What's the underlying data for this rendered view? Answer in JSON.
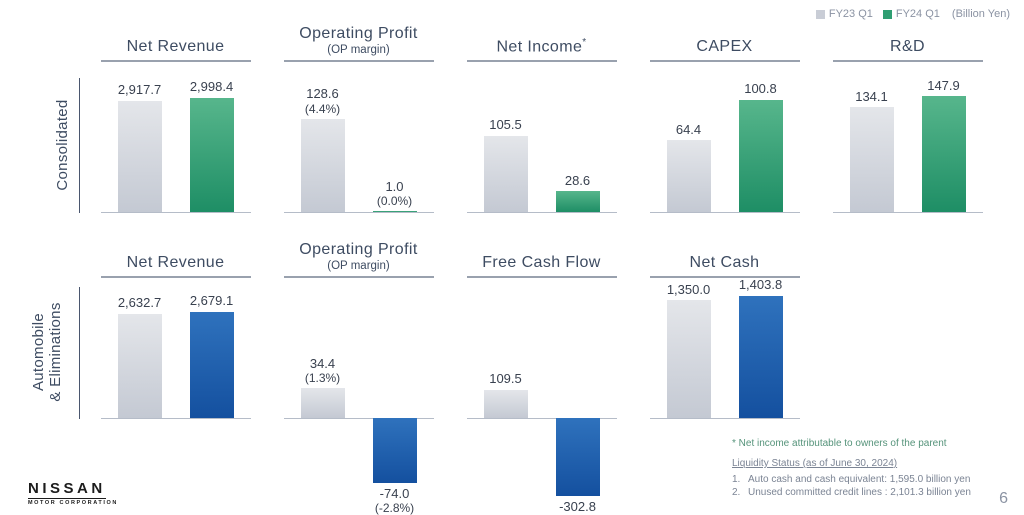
{
  "legend": {
    "items": [
      {
        "label": "FY23 Q1",
        "color": "#c9cdd6"
      },
      {
        "label": "FY24 Q1",
        "color": "#2f9e72"
      }
    ],
    "unit": "(Billion Yen)"
  },
  "row_labels": [
    {
      "lines": [
        "Consolidated"
      ]
    },
    {
      "lines": [
        "Automobile",
        "& Eliminations"
      ]
    }
  ],
  "chart_data": [
    {
      "type": "bar",
      "row": "Consolidated",
      "title": "Net Revenue",
      "subtitle": "",
      "title_suffix": "",
      "categories": [
        "FY23 Q1",
        "FY24 Q1"
      ],
      "values": [
        2917.7,
        2998.4
      ],
      "value_labels": [
        "2,917.7",
        "2,998.4"
      ],
      "pct_labels": [
        "",
        ""
      ],
      "ylim": [
        0,
        3800
      ]
    },
    {
      "type": "bar",
      "row": "Consolidated",
      "title": "Operating Profit",
      "subtitle": "(OP margin)",
      "title_suffix": "",
      "categories": [
        "FY23 Q1",
        "FY24 Q1"
      ],
      "values": [
        128.6,
        1.0
      ],
      "value_labels": [
        "128.6",
        "1.0"
      ],
      "pct_labels": [
        "(4.4%)",
        "(0.0%)"
      ],
      "ylim": [
        0,
        200
      ]
    },
    {
      "type": "bar",
      "row": "Consolidated",
      "title": "Net Income",
      "subtitle": "",
      "title_suffix": "*",
      "categories": [
        "FY23 Q1",
        "FY24 Q1"
      ],
      "values": [
        105.5,
        28.6
      ],
      "value_labels": [
        "105.5",
        "28.6"
      ],
      "pct_labels": [
        "",
        ""
      ],
      "ylim": [
        0,
        200
      ]
    },
    {
      "type": "bar",
      "row": "Consolidated",
      "title": "CAPEX",
      "subtitle": "",
      "title_suffix": "",
      "categories": [
        "FY23 Q1",
        "FY24 Q1"
      ],
      "values": [
        64.4,
        100.8
      ],
      "value_labels": [
        "64.4",
        "100.8"
      ],
      "pct_labels": [
        "",
        ""
      ],
      "ylim": [
        0,
        130
      ]
    },
    {
      "type": "bar",
      "row": "Consolidated",
      "title": "R&D",
      "subtitle": "",
      "title_suffix": "",
      "categories": [
        "FY23 Q1",
        "FY24 Q1"
      ],
      "values": [
        134.1,
        147.9
      ],
      "value_labels": [
        "134.1",
        "147.9"
      ],
      "pct_labels": [
        "",
        ""
      ],
      "ylim": [
        0,
        185
      ]
    },
    {
      "type": "bar",
      "row": "Automobile & Eliminations",
      "title": "Net Revenue",
      "subtitle": "",
      "title_suffix": "",
      "categories": [
        "FY23 Q1",
        "FY24 Q1"
      ],
      "values": [
        2632.7,
        2679.1
      ],
      "value_labels": [
        "2,632.7",
        "2,679.1"
      ],
      "pct_labels": [
        "",
        ""
      ],
      "ylim": [
        0,
        3400
      ]
    },
    {
      "type": "bar",
      "row": "Automobile & Eliminations",
      "title": "Operating Profit",
      "subtitle": "(OP margin)",
      "title_suffix": "",
      "categories": [
        "FY23 Q1",
        "FY24 Q1"
      ],
      "values": [
        34.4,
        -74.0
      ],
      "value_labels": [
        "34.4",
        "-74.0"
      ],
      "pct_labels": [
        "(1.3%)",
        "(-2.8%)"
      ],
      "ylim": [
        -90,
        155
      ]
    },
    {
      "type": "bar",
      "row": "Automobile & Eliminations",
      "title": "Free Cash Flow",
      "subtitle": "",
      "title_suffix": "",
      "categories": [
        "FY23 Q1",
        "FY24 Q1"
      ],
      "values": [
        109.5,
        -302.8
      ],
      "value_labels": [
        "109.5",
        "-302.8"
      ],
      "pct_labels": [
        "",
        ""
      ],
      "ylim": [
        -350,
        524
      ]
    },
    {
      "type": "bar",
      "row": "Automobile & Eliminations",
      "title": "Net Cash",
      "subtitle": "",
      "title_suffix": "",
      "categories": [
        "FY23 Q1",
        "FY24 Q1"
      ],
      "values": [
        1350.0,
        1403.8
      ],
      "value_labels": [
        "1,350.0",
        "1,403.8"
      ],
      "pct_labels": [
        "",
        ""
      ],
      "ylim": [
        0,
        1550
      ]
    }
  ],
  "footnotes": {
    "net_income_note": "* Net income attributable to owners of the parent",
    "liquidity_title": "Liquidity Status (as of June 30, 2024)",
    "liquidity_items": [
      {
        "num": "1.",
        "text": "Auto cash and cash equivalent: 1,595.0 billion yen"
      },
      {
        "num": "2.",
        "text": "Unused committed credit lines : 2,101.3 billion yen"
      }
    ]
  },
  "logo": {
    "brand": "NISSAN",
    "sub": "MOTOR CORPORATION"
  },
  "page_number": "6",
  "colors": {
    "fy23_bar_top": "#e4e6ea",
    "fy23_bar_bottom": "#c4c9d3",
    "green_bar_top": "#57b68c",
    "green_bar_bottom": "#1e8e65",
    "blue_bar_top": "#2f72bd",
    "blue_bar_bottom": "#14509f",
    "title_text": "#3e4c62",
    "value_text": "#39414f",
    "axis_line": "#b5bcc8",
    "rule_line": "#99a1ae",
    "legend_text": "#8b93a3",
    "footnote_green": "#55937a",
    "footnote_gray": "#7b8494"
  }
}
